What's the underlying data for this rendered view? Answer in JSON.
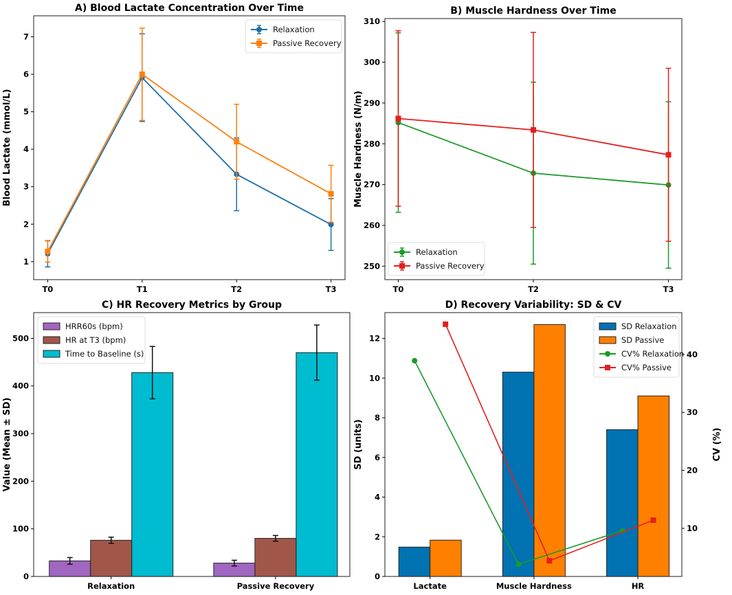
{
  "chart_data": [
    {
      "type": "line",
      "title": "A) Blood Lactate Concentration Over Time",
      "xlabel": "",
      "ylabel": "Blood Lactate (mmol/L)",
      "categories": [
        "T0",
        "T1",
        "T2",
        "T3"
      ],
      "ylim": [
        0.52,
        7.56
      ],
      "yticks": [
        1,
        2,
        3,
        4,
        5,
        6,
        7
      ],
      "legend": "top-right",
      "grid": false,
      "series": [
        {
          "name": "Relaxation",
          "color": "#1f6fa8",
          "marker": "circle",
          "values": [
            1.21,
            5.91,
            3.33,
            1.99
          ],
          "errors": [
            0.35,
            1.17,
            0.97,
            0.69
          ]
        },
        {
          "name": "Passive Recovery",
          "color": "#ff7f0e",
          "marker": "square",
          "values": [
            1.27,
            6.0,
            4.2,
            2.81
          ],
          "errors": [
            0.28,
            1.23,
            1.0,
            0.76
          ]
        }
      ]
    },
    {
      "type": "line",
      "title": "B) Muscle Hardness Over Time",
      "xlabel": "",
      "ylabel": "Muscle Hardness (N/m)",
      "categories": [
        "T0",
        "T2",
        "T3"
      ],
      "ylim": [
        246.7,
        310.7
      ],
      "yticks": [
        250,
        260,
        270,
        280,
        290,
        300,
        310
      ],
      "legend": "bottom-left",
      "grid": false,
      "series": [
        {
          "name": "Relaxation",
          "color": "#1a9a2a",
          "marker": "circle",
          "values": [
            285.2,
            272.8,
            269.9
          ],
          "errors": [
            22.0,
            22.3,
            20.4
          ]
        },
        {
          "name": "Passive Recovery",
          "color": "#e41f1f",
          "marker": "square",
          "values": [
            286.2,
            283.4,
            277.3
          ],
          "errors": [
            21.5,
            23.9,
            21.2
          ]
        }
      ]
    },
    {
      "type": "bar",
      "title": "C) HR Recovery Metrics by Group",
      "xlabel": "",
      "ylabel": "Value (Mean ± SD)",
      "categories": [
        "Relaxation",
        "Passive Recovery"
      ],
      "ylim": [
        0,
        554
      ],
      "yticks": [
        0,
        100,
        200,
        300,
        400,
        500
      ],
      "legend": "top-left",
      "grid": false,
      "series": [
        {
          "name": "HRR60s (bpm)",
          "color": "#a066c0",
          "values": [
            32.7,
            28
          ],
          "errors": [
            7,
            6
          ]
        },
        {
          "name": "HR at T3 (bpm)",
          "color": "#a0574a",
          "values": [
            76,
            80
          ],
          "errors": [
            6.5,
            6
          ]
        },
        {
          "name": "Time to Baseline (s)",
          "color": "#00bcd0",
          "values": [
            428,
            470
          ],
          "errors": [
            55,
            58
          ]
        }
      ]
    },
    {
      "type": "bar",
      "title": "D) Recovery Variability: SD & CV",
      "xlabel": "",
      "ylabel": "SD (units)",
      "y2label": "CV (%)",
      "categories": [
        "Lactate",
        "Muscle Hardness",
        "HR"
      ],
      "ylim": [
        0,
        13.3
      ],
      "yticks": [
        0,
        2,
        4,
        6,
        8,
        10,
        12
      ],
      "y2lim": [
        1.7,
        47.2
      ],
      "y2ticks": [
        10,
        20,
        30,
        40
      ],
      "legend": "top-right",
      "grid": false,
      "bar_series": [
        {
          "name": "SD Relaxation",
          "color": "#0172b2",
          "values": [
            1.48,
            10.3,
            7.4
          ]
        },
        {
          "name": "SD Passive",
          "color": "#ff8000",
          "values": [
            1.83,
            12.7,
            9.1
          ]
        }
      ],
      "line_series": [
        {
          "name": "CV% Relaxation",
          "color": "#1a9a2a",
          "marker": "circle",
          "values": [
            38.9,
            3.8,
            9.6
          ]
        },
        {
          "name": "CV% Passive",
          "color": "#e41f1f",
          "marker": "square",
          "values": [
            45.2,
            4.4,
            11.4
          ]
        }
      ]
    }
  ]
}
